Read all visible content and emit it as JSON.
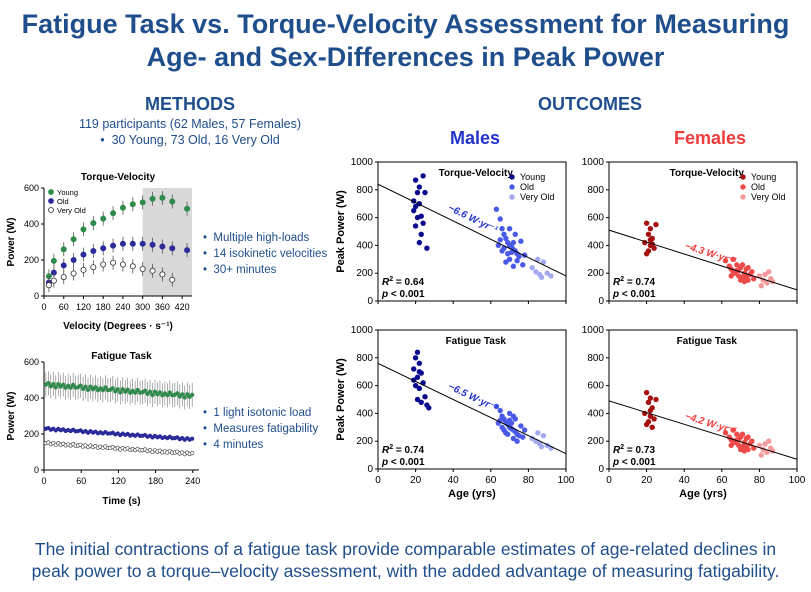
{
  "title": {
    "line1": "Fatigue Task vs. Torque-Velocity Assessment for Measuring",
    "line2": "Age- and Sex-Differences in Peak Power"
  },
  "methods": {
    "heading": "METHODS",
    "participants": "119 participants (62 Males, 57 Females)",
    "groups": "30 Young, 73 Old, 16 Very Old",
    "tv_bullets": [
      "Multiple high-loads",
      "14 isokinetic velocities",
      "30+ minutes"
    ],
    "fatigue_bullets": [
      "1 light isotonic load",
      "Measures fatigability",
      "4 minutes"
    ]
  },
  "outcomes": {
    "heading": "OUTCOMES",
    "males": "Males",
    "females": "Females"
  },
  "footer": {
    "line1": "The initial contractions of a fatigue task provide comparable estimates of age-related declines in",
    "line2": "peak power to a torque–velocity assessment, with the added advantage of measuring fatigability."
  },
  "colors": {
    "male_young": "#0a0a8f",
    "male_old": "#4a5ae8",
    "male_vold": "#a4aaf0",
    "female_young": "#a81010",
    "female_old": "#ee4a4a",
    "female_vold": "#f59a9a",
    "green": "#2e8b4a",
    "purple": "#2b2b9a",
    "shade": "#d9d9d9"
  },
  "chart_data": [
    {
      "id": "tv",
      "type": "line",
      "title": "Torque-Velocity",
      "xlabel": "Velocity (Degrees · s⁻¹)",
      "ylabel": "Power (W)",
      "xlim": [
        0,
        450
      ],
      "ylim": [
        0,
        600
      ],
      "xticks": [
        0,
        60,
        120,
        180,
        240,
        300,
        360,
        420
      ],
      "yticks": [
        0,
        200,
        400,
        600
      ],
      "shaded_x": [
        300,
        450
      ],
      "legend": [
        "Young",
        "Old",
        "Very Old"
      ],
      "series": [
        {
          "name": "Young",
          "x": [
            15,
            30,
            60,
            90,
            120,
            150,
            180,
            210,
            240,
            270,
            300,
            330,
            360,
            390,
            435
          ],
          "y": [
            110,
            195,
            260,
            315,
            370,
            405,
            430,
            460,
            490,
            510,
            520,
            540,
            545,
            525,
            485
          ]
        },
        {
          "name": "Old",
          "x": [
            15,
            30,
            60,
            90,
            120,
            150,
            180,
            210,
            240,
            270,
            300,
            330,
            360,
            390,
            435
          ],
          "y": [
            75,
            130,
            170,
            200,
            230,
            250,
            265,
            280,
            290,
            290,
            290,
            285,
            275,
            265,
            255
          ]
        },
        {
          "name": "Very Old",
          "x": [
            15,
            30,
            60,
            90,
            120,
            150,
            180,
            210,
            240,
            270,
            300,
            330,
            360,
            390
          ],
          "y": [
            60,
            85,
            105,
            125,
            145,
            160,
            175,
            185,
            175,
            165,
            150,
            140,
            120,
            90
          ]
        }
      ]
    },
    {
      "id": "fatigue",
      "type": "line",
      "title": "Fatigue Task",
      "xlabel": "Time (s)",
      "ylabel": "Power (W)",
      "xlim": [
        0,
        250
      ],
      "ylim": [
        0,
        600
      ],
      "xticks": [
        0,
        60,
        120,
        180,
        240
      ],
      "yticks": [
        0,
        200,
        400,
        600
      ],
      "series": [
        {
          "name": "Young",
          "y0": 475,
          "y1": 410
        },
        {
          "name": "Old",
          "y0": 230,
          "y1": 170
        },
        {
          "name": "Very Old",
          "y0": 150,
          "y1": 90
        }
      ]
    },
    {
      "id": "m_tv",
      "type": "scatter",
      "title": "Torque-Velocity",
      "sex": "male",
      "xlim": [
        0,
        100
      ],
      "ylim": [
        0,
        1000
      ],
      "ylabel": "Peak Power (W)",
      "legend": [
        "Young",
        "Old",
        "Very Old"
      ],
      "line": {
        "x": [
          0,
          100
        ],
        "y": [
          840,
          180
        ]
      },
      "slope_label": "−6.6 W·yr⁻¹",
      "r2": "0.64",
      "p": "< 0.001",
      "young": [
        [
          20,
          870
        ],
        [
          21,
          780
        ],
        [
          22,
          700
        ],
        [
          19,
          650
        ],
        [
          23,
          610
        ],
        [
          21,
          600
        ],
        [
          24,
          560
        ],
        [
          20,
          540
        ],
        [
          22,
          820
        ],
        [
          25,
          780
        ],
        [
          19,
          720
        ],
        [
          23,
          480
        ],
        [
          22,
          420
        ],
        [
          26,
          380
        ],
        [
          24,
          900
        ],
        [
          20,
          680
        ]
      ],
      "old": [
        [
          63,
          660
        ],
        [
          65,
          590
        ],
        [
          66,
          520
        ],
        [
          67,
          480
        ],
        [
          68,
          450
        ],
        [
          69,
          420
        ],
        [
          70,
          400
        ],
        [
          71,
          390
        ],
        [
          72,
          370
        ],
        [
          73,
          360
        ],
        [
          74,
          340
        ],
        [
          75,
          320
        ],
        [
          70,
          300
        ],
        [
          68,
          280
        ],
        [
          72,
          250
        ],
        [
          76,
          430
        ],
        [
          66,
          360
        ],
        [
          64,
          400
        ],
        [
          70,
          520
        ],
        [
          73,
          480
        ],
        [
          67,
          380
        ],
        [
          71,
          350
        ],
        [
          74,
          290
        ],
        [
          77,
          260
        ],
        [
          78,
          330
        ],
        [
          69,
          340
        ],
        [
          65,
          440
        ],
        [
          72,
          420
        ]
      ],
      "vold": [
        [
          82,
          240
        ],
        [
          84,
          210
        ],
        [
          86,
          190
        ],
        [
          88,
          280
        ],
        [
          90,
          200
        ],
        [
          92,
          180
        ],
        [
          85,
          300
        ],
        [
          87,
          170
        ]
      ]
    },
    {
      "id": "f_tv",
      "type": "scatter",
      "title": "Torque-Velocity",
      "sex": "female",
      "xlim": [
        0,
        100
      ],
      "ylim": [
        0,
        1000
      ],
      "legend": [
        "Young",
        "Old",
        "Very Old"
      ],
      "line": {
        "x": [
          0,
          100
        ],
        "y": [
          510,
          80
        ]
      },
      "slope_label": "−4.3 W·yr⁻¹",
      "r2": "0.74",
      "p": "< 0.001",
      "young": [
        [
          20,
          560
        ],
        [
          22,
          520
        ],
        [
          21,
          480
        ],
        [
          23,
          450
        ],
        [
          19,
          420
        ],
        [
          22,
          400
        ],
        [
          24,
          380
        ],
        [
          21,
          360
        ],
        [
          25,
          550
        ],
        [
          20,
          340
        ],
        [
          23,
          410
        ],
        [
          22,
          440
        ]
      ],
      "old": [
        [
          62,
          290
        ],
        [
          64,
          250
        ],
        [
          65,
          230
        ],
        [
          66,
          210
        ],
        [
          67,
          200
        ],
        [
          68,
          220
        ],
        [
          69,
          180
        ],
        [
          70,
          240
        ],
        [
          71,
          170
        ],
        [
          72,
          200
        ],
        [
          73,
          230
        ],
        [
          74,
          150
        ],
        [
          75,
          190
        ],
        [
          68,
          260
        ],
        [
          70,
          150
        ],
        [
          72,
          140
        ],
        [
          66,
          300
        ],
        [
          76,
          210
        ],
        [
          65,
          180
        ],
        [
          69,
          220
        ],
        [
          71,
          260
        ],
        [
          73,
          170
        ],
        [
          74,
          240
        ],
        [
          77,
          160
        ]
      ],
      "vold": [
        [
          80,
          180
        ],
        [
          82,
          150
        ],
        [
          84,
          130
        ],
        [
          85,
          210
        ],
        [
          86,
          160
        ],
        [
          81,
          110
        ],
        [
          83,
          190
        ],
        [
          87,
          140
        ]
      ]
    },
    {
      "id": "m_ft",
      "type": "scatter",
      "title": "Fatigue Task",
      "sex": "male",
      "xlim": [
        0,
        100
      ],
      "ylim": [
        0,
        1000
      ],
      "xlabel": "Age (yrs)",
      "ylabel": "Peak Power (W)",
      "xticks": [
        0,
        20,
        40,
        60,
        80,
        100
      ],
      "line": {
        "x": [
          0,
          100
        ],
        "y": [
          760,
          110
        ]
      },
      "slope_label": "−6.5 W·yr⁻¹",
      "r2": "0.74",
      "p": "< 0.001",
      "young": [
        [
          21,
          840
        ],
        [
          20,
          800
        ],
        [
          22,
          760
        ],
        [
          19,
          720
        ],
        [
          23,
          690
        ],
        [
          21,
          660
        ],
        [
          24,
          620
        ],
        [
          20,
          600
        ],
        [
          22,
          580
        ],
        [
          25,
          520
        ],
        [
          21,
          500
        ],
        [
          23,
          480
        ],
        [
          26,
          460
        ],
        [
          19,
          640
        ],
        [
          22,
          700
        ],
        [
          27,
          440
        ]
      ],
      "old": [
        [
          63,
          450
        ],
        [
          65,
          420
        ],
        [
          66,
          380
        ],
        [
          67,
          360
        ],
        [
          68,
          340
        ],
        [
          69,
          320
        ],
        [
          70,
          300
        ],
        [
          71,
          290
        ],
        [
          72,
          280
        ],
        [
          73,
          270
        ],
        [
          74,
          250
        ],
        [
          75,
          240
        ],
        [
          70,
          350
        ],
        [
          68,
          260
        ],
        [
          72,
          220
        ],
        [
          76,
          310
        ],
        [
          66,
          300
        ],
        [
          64,
          330
        ],
        [
          70,
          400
        ],
        [
          73,
          360
        ],
        [
          67,
          280
        ],
        [
          71,
          330
        ],
        [
          74,
          200
        ],
        [
          77,
          230
        ],
        [
          78,
          280
        ],
        [
          69,
          250
        ],
        [
          65,
          350
        ],
        [
          72,
          380
        ]
      ],
      "vold": [
        [
          82,
          220
        ],
        [
          84,
          200
        ],
        [
          86,
          180
        ],
        [
          88,
          240
        ],
        [
          90,
          170
        ],
        [
          92,
          150
        ],
        [
          85,
          260
        ],
        [
          87,
          160
        ]
      ]
    },
    {
      "id": "f_ft",
      "type": "scatter",
      "title": "Fatigue Task",
      "sex": "female",
      "xlim": [
        0,
        100
      ],
      "ylim": [
        0,
        1000
      ],
      "xlabel": "Age (yrs)",
      "xticks": [
        0,
        20,
        40,
        60,
        80,
        100
      ],
      "line": {
        "x": [
          0,
          100
        ],
        "y": [
          490,
          70
        ]
      },
      "slope_label": "−4.2 W·yr⁻¹",
      "r2": "0.73",
      "p": "< 0.001",
      "young": [
        [
          20,
          550
        ],
        [
          22,
          510
        ],
        [
          21,
          480
        ],
        [
          23,
          440
        ],
        [
          19,
          400
        ],
        [
          22,
          380
        ],
        [
          24,
          360
        ],
        [
          21,
          340
        ],
        [
          25,
          500
        ],
        [
          20,
          320
        ],
        [
          23,
          300
        ],
        [
          22,
          420
        ]
      ],
      "old": [
        [
          62,
          260
        ],
        [
          64,
          230
        ],
        [
          65,
          210
        ],
        [
          66,
          200
        ],
        [
          67,
          190
        ],
        [
          68,
          210
        ],
        [
          69,
          170
        ],
        [
          70,
          230
        ],
        [
          71,
          160
        ],
        [
          72,
          190
        ],
        [
          73,
          220
        ],
        [
          74,
          140
        ],
        [
          75,
          180
        ],
        [
          68,
          250
        ],
        [
          70,
          140
        ],
        [
          72,
          130
        ],
        [
          66,
          280
        ],
        [
          76,
          200
        ],
        [
          65,
          170
        ],
        [
          69,
          210
        ],
        [
          71,
          250
        ],
        [
          73,
          160
        ],
        [
          74,
          230
        ],
        [
          77,
          150
        ]
      ],
      "vold": [
        [
          80,
          170
        ],
        [
          82,
          140
        ],
        [
          84,
          120
        ],
        [
          85,
          200
        ],
        [
          86,
          150
        ],
        [
          81,
          100
        ],
        [
          83,
          180
        ],
        [
          87,
          130
        ]
      ]
    }
  ]
}
